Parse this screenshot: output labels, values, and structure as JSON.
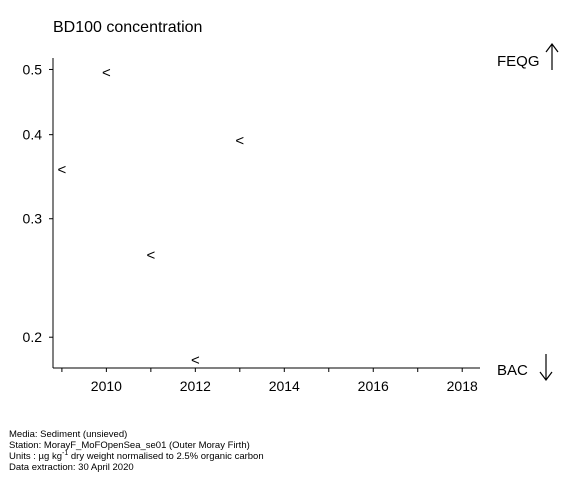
{
  "title": "BD100 concentration",
  "chart_data": {
    "type": "scatter",
    "title": "BD100 concentration",
    "xlabel": "",
    "ylabel": "",
    "y_scale": "log",
    "xlim": [
      2008.8,
      2018.4
    ],
    "ylim": [
      0.18,
      0.52
    ],
    "x_ticks": [
      2010,
      2012,
      2014,
      2016,
      2018
    ],
    "y_ticks": [
      0.2,
      0.3,
      0.4,
      0.5
    ],
    "marker": "<",
    "marker_meaning": "less than (below detection limit)",
    "points": [
      {
        "x": 2009,
        "y": 0.355
      },
      {
        "x": 2010,
        "y": 0.495
      },
      {
        "x": 2011,
        "y": 0.265
      },
      {
        "x": 2012,
        "y": 0.185
      },
      {
        "x": 2013,
        "y": 0.392
      }
    ],
    "reference_labels": {
      "top": "FEQG",
      "bottom": "BAC"
    }
  },
  "footer": {
    "media": "Media: Sediment (unsieved)",
    "station": "Station: MorayF_MoFOpenSea_se01 (Outer Moray Firth)",
    "units_prefix": "Units : µg kg",
    "units_sup": "-1",
    "units_suffix": " dry weight normalised to 2.5% organic carbon",
    "extraction": "Data extraction: 30 April 2020"
  }
}
